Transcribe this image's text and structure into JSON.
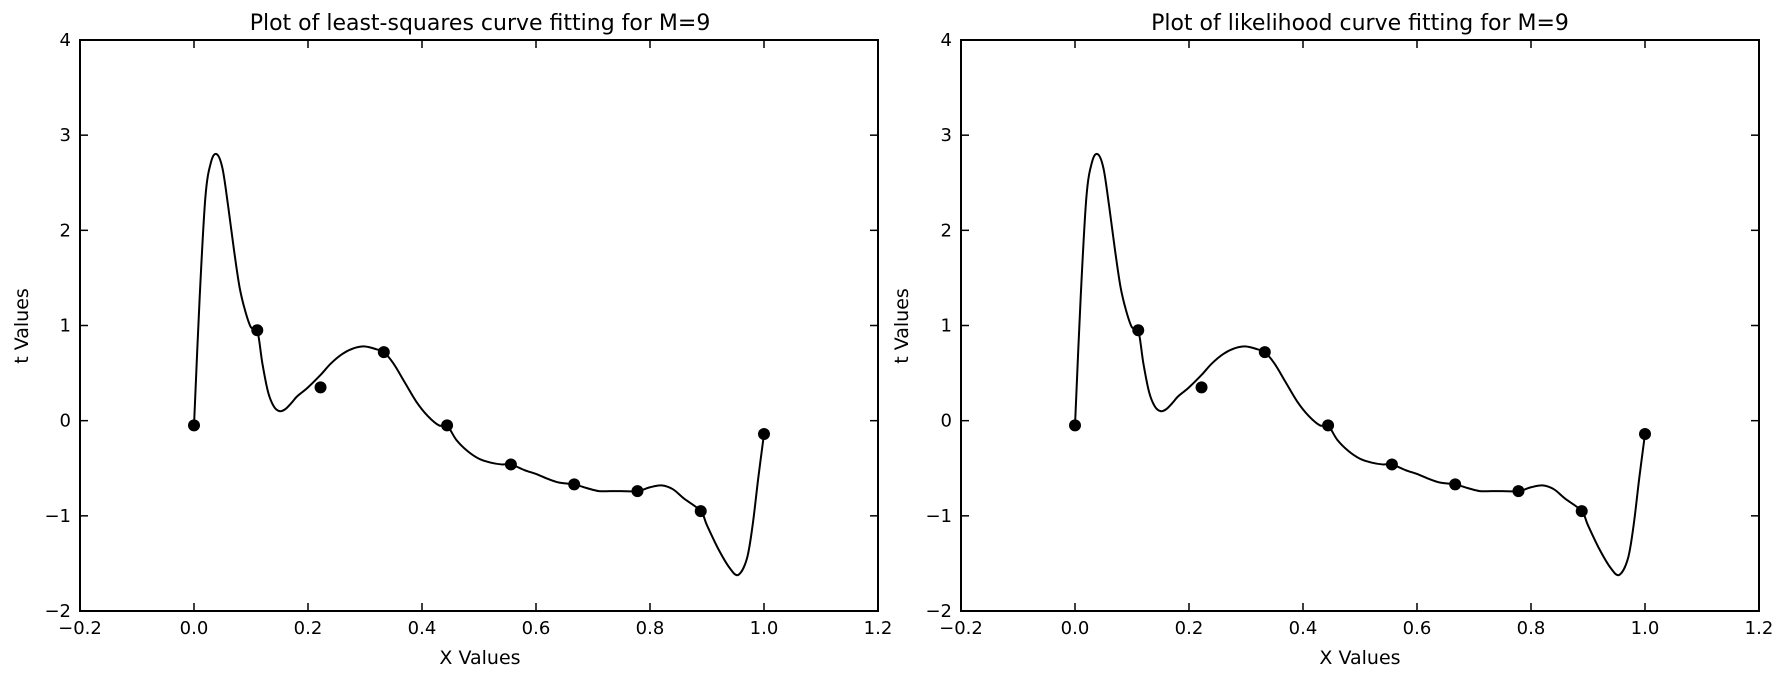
{
  "chart_data": [
    {
      "type": "line",
      "title": "Plot of least-squares curve fitting for M=9",
      "xlabel": "X Values",
      "ylabel": "t Values",
      "xlim": [
        -0.2,
        1.2
      ],
      "ylim": [
        -2,
        4
      ],
      "xticks": [
        -0.2,
        0.0,
        0.2,
        0.4,
        0.6,
        0.8,
        1.0,
        1.2
      ],
      "xtick_labels": [
        "−0.2",
        "0.0",
        "0.2",
        "0.4",
        "0.6",
        "0.8",
        "1.0",
        "1.2"
      ],
      "yticks": [
        -2,
        -1,
        0,
        1,
        2,
        3,
        4
      ],
      "ytick_labels": [
        "−2",
        "−1",
        "0",
        "1",
        "2",
        "3",
        "4"
      ],
      "grid": false,
      "legend": "none",
      "series": [
        {
          "kind": "curve",
          "color": "#000000",
          "x": [
            0.0,
            0.01,
            0.02,
            0.03,
            0.04,
            0.05,
            0.06,
            0.07,
            0.08,
            0.09,
            0.1,
            0.111,
            0.12,
            0.13,
            0.14,
            0.15,
            0.16,
            0.17,
            0.18,
            0.19,
            0.2,
            0.222,
            0.24,
            0.26,
            0.28,
            0.3,
            0.32,
            0.333,
            0.35,
            0.37,
            0.39,
            0.41,
            0.43,
            0.444,
            0.46,
            0.48,
            0.5,
            0.52,
            0.54,
            0.556,
            0.58,
            0.6,
            0.62,
            0.64,
            0.667,
            0.69,
            0.71,
            0.73,
            0.75,
            0.778,
            0.8,
            0.82,
            0.84,
            0.86,
            0.889,
            0.9,
            0.92,
            0.94,
            0.955,
            0.97,
            0.98,
            0.99,
            1.0
          ],
          "y": [
            -0.05,
            1.3,
            2.35,
            2.72,
            2.8,
            2.65,
            2.25,
            1.8,
            1.4,
            1.15,
            0.98,
            0.95,
            0.6,
            0.3,
            0.15,
            0.1,
            0.12,
            0.18,
            0.25,
            0.3,
            0.35,
            0.48,
            0.6,
            0.7,
            0.76,
            0.78,
            0.75,
            0.72,
            0.6,
            0.4,
            0.2,
            0.05,
            -0.05,
            -0.05,
            -0.2,
            -0.32,
            -0.4,
            -0.44,
            -0.46,
            -0.46,
            -0.52,
            -0.56,
            -0.61,
            -0.65,
            -0.67,
            -0.71,
            -0.74,
            -0.74,
            -0.74,
            -0.74,
            -0.7,
            -0.68,
            -0.72,
            -0.82,
            -0.95,
            -1.1,
            -1.35,
            -1.55,
            -1.62,
            -1.45,
            -1.1,
            -0.6,
            -0.14
          ]
        },
        {
          "kind": "points",
          "color": "#000000",
          "x": [
            0.0,
            0.111,
            0.222,
            0.333,
            0.444,
            0.556,
            0.667,
            0.778,
            0.889,
            1.0
          ],
          "y": [
            -0.05,
            0.95,
            0.35,
            0.72,
            -0.05,
            -0.46,
            -0.67,
            -0.74,
            -0.95,
            -0.14
          ]
        }
      ]
    },
    {
      "type": "line",
      "title": "Plot of likelihood curve fitting for M=9",
      "xlabel": "X Values",
      "ylabel": "t Values",
      "xlim": [
        -0.2,
        1.2
      ],
      "ylim": [
        -2,
        4
      ],
      "xticks": [
        -0.2,
        0.0,
        0.2,
        0.4,
        0.6,
        0.8,
        1.0,
        1.2
      ],
      "xtick_labels": [
        "−0.2",
        "0.0",
        "0.2",
        "0.4",
        "0.6",
        "0.8",
        "1.0",
        "1.2"
      ],
      "yticks": [
        -2,
        -1,
        0,
        1,
        2,
        3,
        4
      ],
      "ytick_labels": [
        "−2",
        "−1",
        "0",
        "1",
        "2",
        "3",
        "4"
      ],
      "grid": false,
      "legend": "none",
      "series": [
        {
          "kind": "curve",
          "color": "#000000",
          "x": [
            0.0,
            0.01,
            0.02,
            0.03,
            0.04,
            0.05,
            0.06,
            0.07,
            0.08,
            0.09,
            0.1,
            0.111,
            0.12,
            0.13,
            0.14,
            0.15,
            0.16,
            0.17,
            0.18,
            0.19,
            0.2,
            0.222,
            0.24,
            0.26,
            0.28,
            0.3,
            0.32,
            0.333,
            0.35,
            0.37,
            0.39,
            0.41,
            0.43,
            0.444,
            0.46,
            0.48,
            0.5,
            0.52,
            0.54,
            0.556,
            0.58,
            0.6,
            0.62,
            0.64,
            0.667,
            0.69,
            0.71,
            0.73,
            0.75,
            0.778,
            0.8,
            0.82,
            0.84,
            0.86,
            0.889,
            0.9,
            0.92,
            0.94,
            0.955,
            0.97,
            0.98,
            0.99,
            1.0
          ],
          "y": [
            -0.05,
            1.3,
            2.35,
            2.72,
            2.8,
            2.65,
            2.25,
            1.8,
            1.4,
            1.15,
            0.98,
            0.95,
            0.6,
            0.3,
            0.15,
            0.1,
            0.12,
            0.18,
            0.25,
            0.3,
            0.35,
            0.48,
            0.6,
            0.7,
            0.76,
            0.78,
            0.75,
            0.72,
            0.6,
            0.4,
            0.2,
            0.05,
            -0.05,
            -0.05,
            -0.2,
            -0.32,
            -0.4,
            -0.44,
            -0.46,
            -0.46,
            -0.52,
            -0.56,
            -0.61,
            -0.65,
            -0.67,
            -0.71,
            -0.74,
            -0.74,
            -0.74,
            -0.74,
            -0.7,
            -0.68,
            -0.72,
            -0.82,
            -0.95,
            -1.1,
            -1.35,
            -1.55,
            -1.62,
            -1.45,
            -1.1,
            -0.6,
            -0.14
          ]
        },
        {
          "kind": "points",
          "color": "#000000",
          "x": [
            0.0,
            0.111,
            0.222,
            0.333,
            0.444,
            0.556,
            0.667,
            0.778,
            0.889,
            1.0
          ],
          "y": [
            -0.05,
            0.95,
            0.35,
            0.72,
            -0.05,
            -0.46,
            -0.67,
            -0.74,
            -0.95,
            -0.14
          ]
        }
      ]
    }
  ]
}
